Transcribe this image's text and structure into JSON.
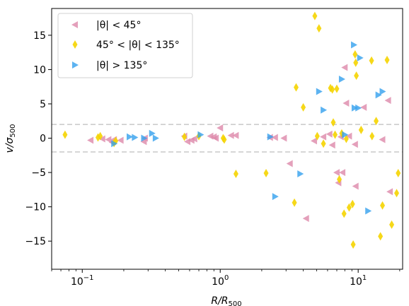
{
  "chart_data": {
    "type": "scatter",
    "xscale": "log",
    "xlim": [
      0.06,
      21
    ],
    "ylim": [
      -19.1,
      18.9
    ],
    "xlabel": "R/R",
    "xlabel_sub": "500",
    "ylabel": "v/σ",
    "ylabel_sub": "500",
    "yticks": [
      -15,
      -10,
      -5,
      0,
      5,
      10,
      15
    ],
    "xticks": [
      0.1,
      1,
      10
    ],
    "xtick_labels": [
      {
        "base": "10",
        "exp": "−1"
      },
      {
        "base": "10",
        "exp": "0"
      },
      {
        "base": "10",
        "exp": "1"
      }
    ],
    "hlines": [
      2,
      -2
    ],
    "hline_color": "#c8c8c8",
    "grid": false,
    "legend_position": "upper-left",
    "series": [
      {
        "name": "|θ| < 45°",
        "marker": "triangle-left",
        "color": "#dd88aa",
        "x": [
          0.115,
          0.14,
          0.155,
          0.165,
          0.17,
          0.19,
          0.28,
          0.285,
          0.55,
          0.58,
          0.62,
          0.65,
          0.85,
          0.9,
          0.93,
          1.0,
          1.2,
          1.3,
          2.3,
          2.5,
          2.9,
          3.2,
          4.2,
          4.8,
          5.6,
          6.2,
          6.5,
          7.0,
          7.2,
          7.5,
          7.7,
          8.0,
          8.2,
          8.6,
          9.5,
          9.6,
          11.0,
          15.0,
          16.5,
          17.0
        ],
        "y": [
          -0.3,
          -0.1,
          -0.2,
          -0.6,
          -0.2,
          -0.3,
          -0.5,
          0.0,
          0.3,
          -0.5,
          -0.3,
          -0.1,
          0.3,
          0.2,
          0.0,
          1.5,
          0.4,
          0.4,
          0.1,
          0.1,
          0.0,
          -3.7,
          -11.7,
          -0.4,
          0.2,
          0.6,
          -1.0,
          -5.0,
          -6.5,
          0.2,
          -5.0,
          10.3,
          5.1,
          0.3,
          -0.9,
          -7.0,
          4.5,
          -0.2,
          5.5,
          -7.8
        ]
      },
      {
        "name": "45° < |θ| < 135°",
        "marker": "thin-diamond",
        "color": "#f5d400",
        "x": [
          0.075,
          0.13,
          0.135,
          0.17,
          0.175,
          0.55,
          0.7,
          1.05,
          1.07,
          1.3,
          2.15,
          3.45,
          3.55,
          4.0,
          4.85,
          5.05,
          5.2,
          5.6,
          6.3,
          6.5,
          6.6,
          6.8,
          7.0,
          7.3,
          7.6,
          7.9,
          8.2,
          8.6,
          9.1,
          9.2,
          9.5,
          9.6,
          9.7,
          10.5,
          12.5,
          12.6,
          13.5,
          14.5,
          15.0,
          16.2,
          17.5,
          19.0,
          19.5
        ],
        "y": [
          0.5,
          0.1,
          0.3,
          -0.7,
          -0.4,
          0.2,
          0.3,
          0.0,
          -0.2,
          -5.2,
          -5.1,
          -9.4,
          7.4,
          4.5,
          17.8,
          0.3,
          16.0,
          -0.8,
          7.3,
          7.1,
          2.3,
          0.5,
          7.2,
          -6.0,
          0.7,
          -11.0,
          -0.1,
          -10.1,
          -9.6,
          -15.5,
          12.2,
          11.0,
          9.1,
          1.2,
          11.3,
          0.3,
          2.5,
          -14.3,
          -9.8,
          11.4,
          -12.6,
          -8.0,
          -5.1
        ]
      },
      {
        "name": "|θ| > 135°",
        "marker": "triangle-right",
        "color": "#33a0ee",
        "x": [
          0.17,
          0.22,
          0.24,
          0.28,
          0.32,
          0.34,
          0.72,
          2.3,
          2.5,
          3.8,
          5.2,
          5.6,
          7.6,
          8.0,
          9.3,
          9.4,
          10.0,
          10.3,
          11.8,
          14.0,
          15.0
        ],
        "y": [
          -0.8,
          0.2,
          0.1,
          0.0,
          0.7,
          0.0,
          0.5,
          0.2,
          -8.5,
          -5.2,
          6.8,
          4.1,
          8.6,
          0.5,
          13.6,
          4.4,
          4.4,
          11.7,
          -10.6,
          6.3,
          6.8
        ]
      }
    ]
  }
}
